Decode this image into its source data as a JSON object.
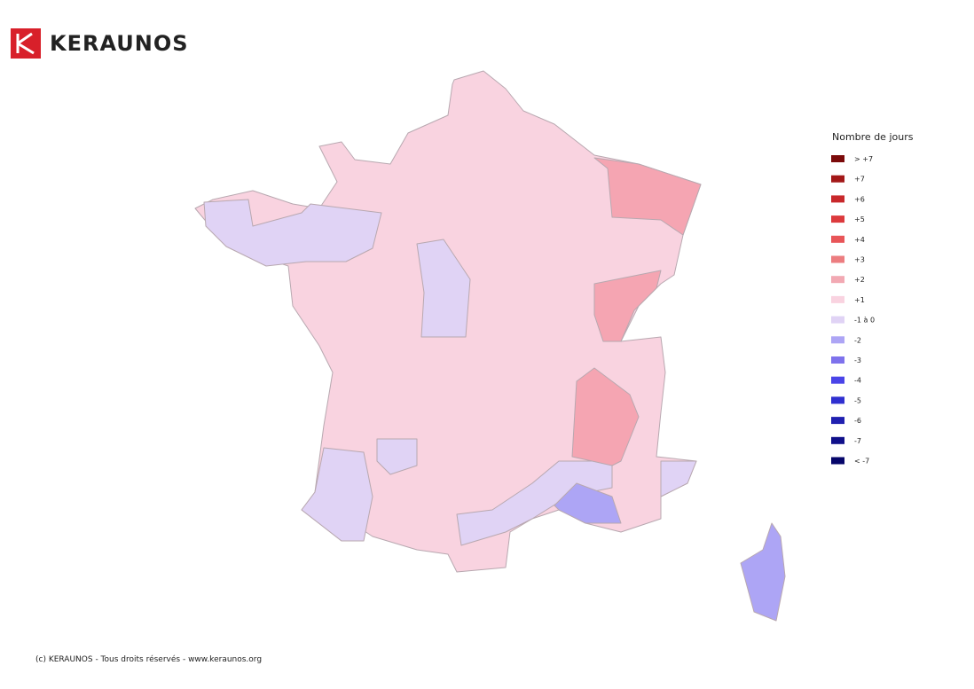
{
  "header": {
    "logo_text": "KERAUNOS"
  },
  "legend": {
    "title": "Nombre de jours",
    "items": [
      {
        "label": "> +7",
        "color": "#7b0a0a"
      },
      {
        "label": "+7",
        "color": "#a31818"
      },
      {
        "label": "+6",
        "color": "#c8282b"
      },
      {
        "label": "+5",
        "color": "#dc3a3d"
      },
      {
        "label": "+4",
        "color": "#e85558"
      },
      {
        "label": "+3",
        "color": "#ec7d80"
      },
      {
        "label": "+2",
        "color": "#f2a9b3"
      },
      {
        "label": "+1",
        "color": "#f9d3e0"
      },
      {
        "label": "-1 à 0",
        "color": "#e0d3f5"
      },
      {
        "label": "-2",
        "color": "#ada5f5"
      },
      {
        "label": "-3",
        "color": "#7e72ec"
      },
      {
        "label": "-4",
        "color": "#4a44e8"
      },
      {
        "label": "-5",
        "color": "#2f2fd0"
      },
      {
        "label": "-6",
        "color": "#2020b0"
      },
      {
        "label": "-7",
        "color": "#10108a"
      },
      {
        "label": "< -7",
        "color": "#06066a"
      }
    ]
  },
  "footer": "(c) KERAUNOS - Tous droits réservés - www.keraunos.org"
}
